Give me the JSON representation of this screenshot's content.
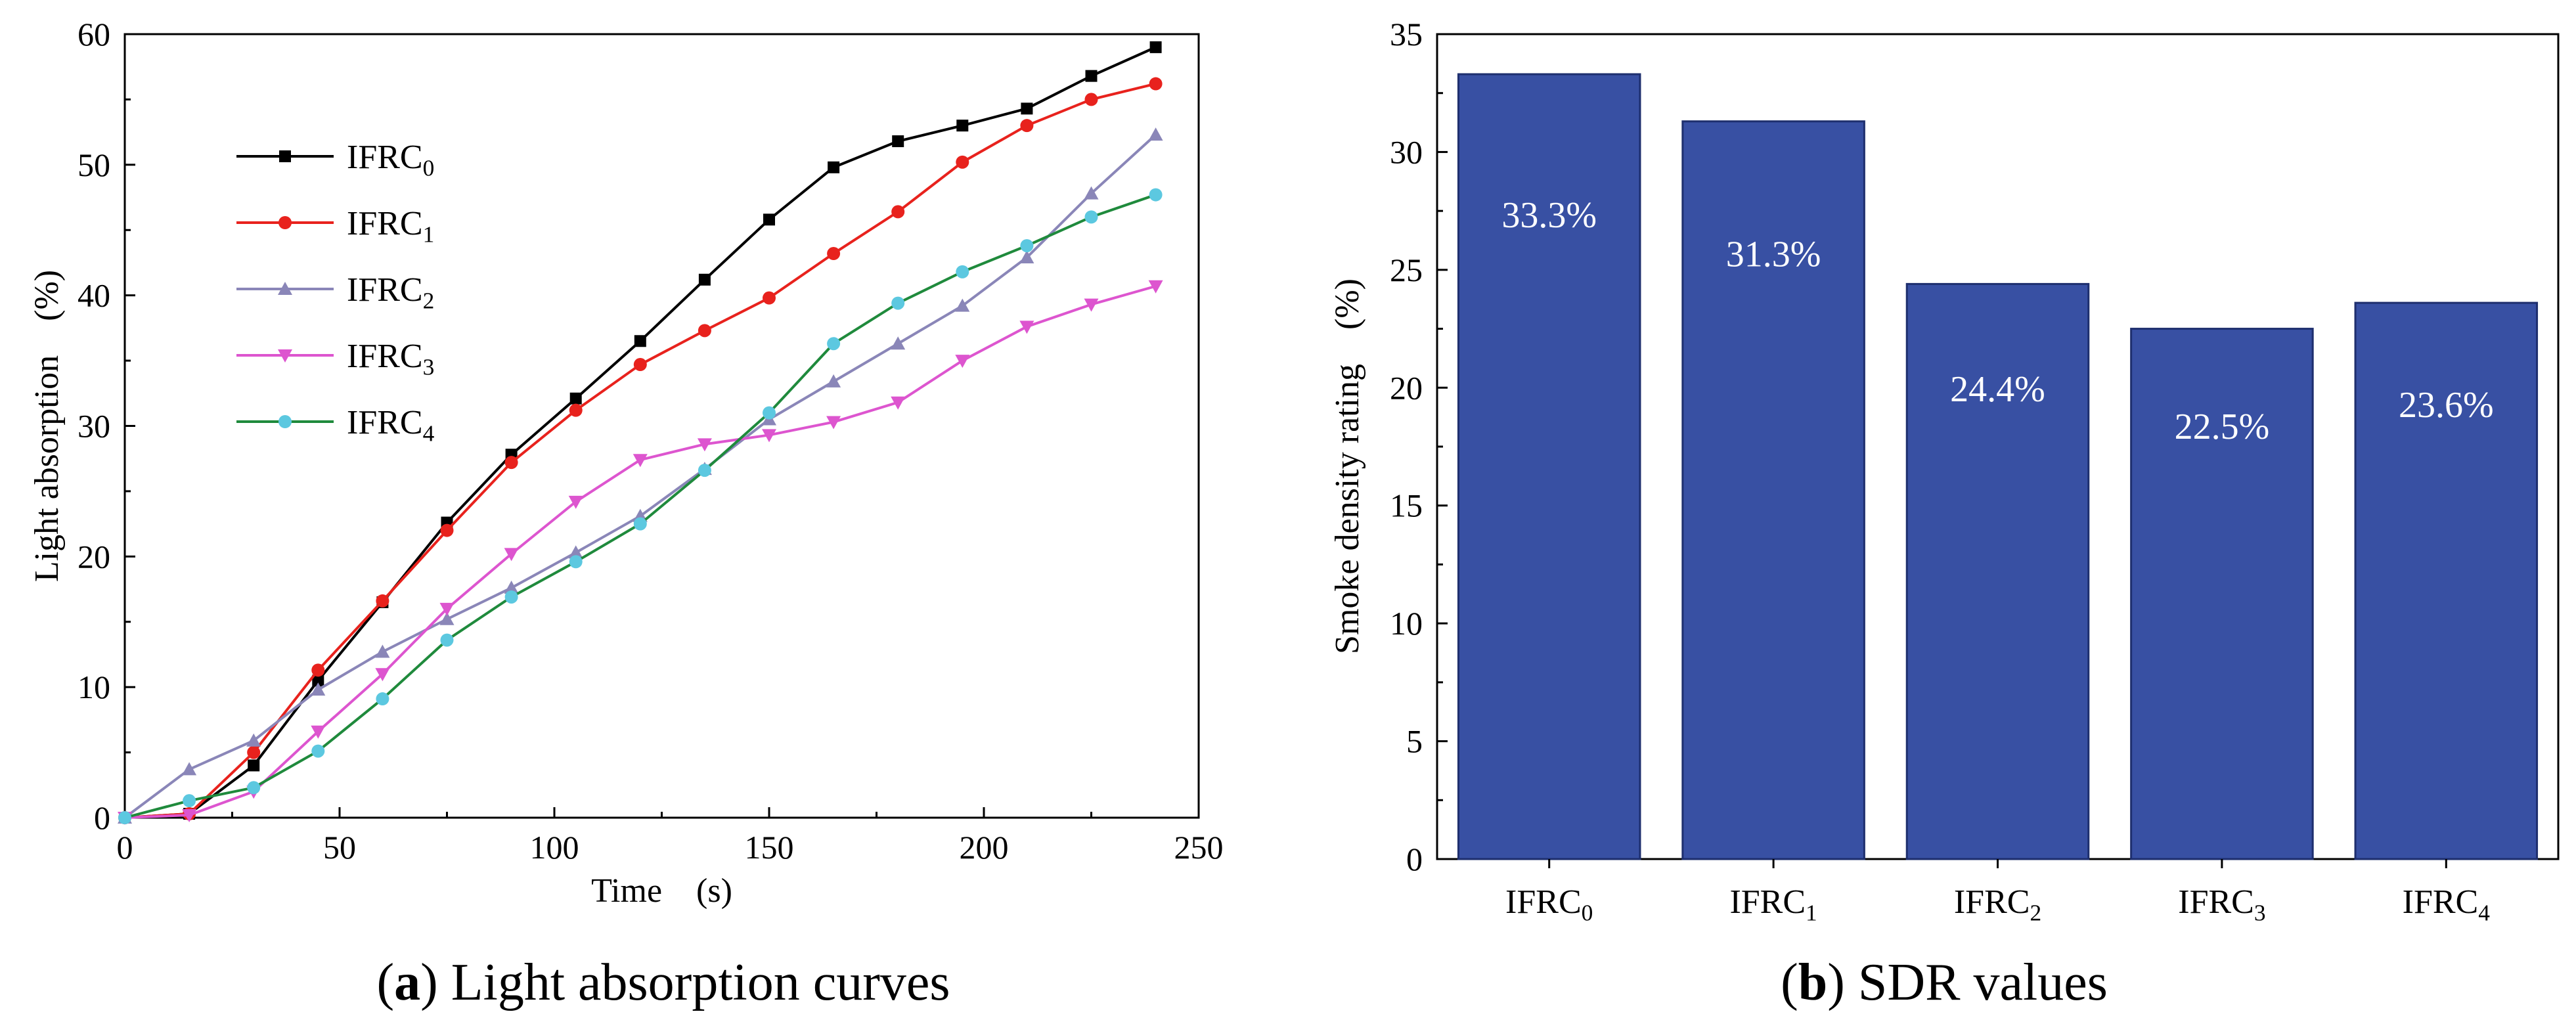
{
  "chart_data": [
    {
      "type": "line",
      "panel_letter": "a",
      "caption_text": "Light absorption curves",
      "xlabel": "Time　(s)",
      "ylabel": "Light absorption　(%)",
      "xlim": [
        0,
        250
      ],
      "ylim": [
        0,
        60
      ],
      "xticks": [
        0,
        50,
        100,
        150,
        200,
        250
      ],
      "yticks": [
        0,
        10,
        20,
        30,
        40,
        50,
        60
      ],
      "grid": false,
      "legend_position": "top-left",
      "x": [
        0,
        15,
        30,
        45,
        60,
        75,
        90,
        105,
        120,
        135,
        150,
        165,
        180,
        195,
        210,
        225,
        240
      ],
      "series": [
        {
          "name": "IFRC",
          "subscript": "0",
          "color": "#000000",
          "marker": "square",
          "values": [
            0,
            0.3,
            4,
            10.5,
            16.5,
            22.6,
            27.8,
            32.1,
            36.5,
            41.2,
            45.8,
            49.8,
            51.8,
            53.0,
            54.3,
            56.8,
            59.0
          ]
        },
        {
          "name": "IFRC",
          "subscript": "1",
          "color": "#e8221d",
          "marker": "circle",
          "values": [
            0,
            0.3,
            5.0,
            11.3,
            16.6,
            22.0,
            27.2,
            31.2,
            34.7,
            37.3,
            39.8,
            43.2,
            46.4,
            50.2,
            53.0,
            55.0,
            56.2
          ]
        },
        {
          "name": "IFRC",
          "subscript": "2",
          "color": "#8a86b8",
          "marker": "triangle-up",
          "values": [
            0,
            3.7,
            5.9,
            9.8,
            12.7,
            15.2,
            17.6,
            20.3,
            23.1,
            26.7,
            30.5,
            33.4,
            36.3,
            39.2,
            42.9,
            47.8,
            52.3
          ]
        },
        {
          "name": "IFRC",
          "subscript": "3",
          "color": "#dd55cf",
          "marker": "triangle-down",
          "values": [
            0,
            0.2,
            2.0,
            6.6,
            11.0,
            16.0,
            20.2,
            24.2,
            27.4,
            28.6,
            29.3,
            30.3,
            31.8,
            35.0,
            37.6,
            39.3,
            40.7
          ]
        },
        {
          "name": "IFRC",
          "subscript": "4",
          "color": "#1f8a3c",
          "marker": "circle",
          "marker_color": "#5cc8e0",
          "values": [
            0,
            1.3,
            2.3,
            5.1,
            9.1,
            13.6,
            16.9,
            19.6,
            22.5,
            26.6,
            31.0,
            36.3,
            39.4,
            41.8,
            43.8,
            46.0,
            47.7
          ]
        }
      ]
    },
    {
      "type": "bar",
      "panel_letter": "b",
      "caption_text": "SDR values",
      "xlabel": "",
      "ylabel": "Smoke density rating　(%)",
      "ylim": [
        0,
        35
      ],
      "yticks": [
        0,
        5,
        10,
        15,
        20,
        25,
        30,
        35
      ],
      "grid": false,
      "bar_color": "#3850a3",
      "categories": [
        {
          "name": "IFRC",
          "subscript": "0"
        },
        {
          "name": "IFRC",
          "subscript": "1"
        },
        {
          "name": "IFRC",
          "subscript": "2"
        },
        {
          "name": "IFRC",
          "subscript": "3"
        },
        {
          "name": "IFRC",
          "subscript": "4"
        }
      ],
      "values": [
        33.3,
        31.3,
        24.4,
        22.5,
        23.6
      ],
      "data_labels": [
        "33.3%",
        "31.3%",
        "24.4%",
        "22.5%",
        "23.6%"
      ]
    }
  ]
}
